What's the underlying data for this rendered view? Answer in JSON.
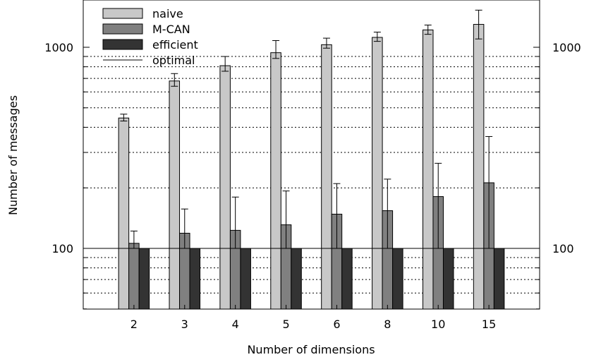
{
  "chart_data": {
    "type": "bar",
    "title": "",
    "xlabel": "Number of dimensions",
    "ylabel": "Number of messages",
    "yscale": "log",
    "ylim": [
      50,
      1800
    ],
    "yticks": [
      100,
      1000
    ],
    "ytick_labels": [
      "100",
      "1000"
    ],
    "right_axis_labels": true,
    "grid": "horizontal dotted at minor log ticks",
    "legend_position": "top-left",
    "categories": [
      "2",
      "3",
      "4",
      "5",
      "6",
      "8",
      "10",
      "15"
    ],
    "series": [
      {
        "name": "naive",
        "color": "#c8c8c8",
        "values": [
          445,
          680,
          810,
          940,
          1030,
          1120,
          1220,
          1300
        ],
        "error_low": [
          430,
          640,
          760,
          880,
          990,
          1070,
          1160,
          1100
        ],
        "error_high": [
          465,
          740,
          900,
          1080,
          1110,
          1190,
          1290,
          1530
        ]
      },
      {
        "name": "M-CAN",
        "color": "#808080",
        "values": [
          106,
          119,
          123,
          131,
          148,
          154,
          181,
          212
        ],
        "error_low": [
          100,
          100,
          100,
          100,
          100,
          100,
          100,
          100
        ],
        "error_high": [
          122,
          157,
          180,
          193,
          210,
          221,
          265,
          360
        ]
      },
      {
        "name": "efficient",
        "color": "#333333",
        "values": [
          100,
          100,
          100,
          100,
          100,
          100,
          100,
          100
        ]
      },
      {
        "name": "optimal",
        "kind": "line",
        "color": "#000000",
        "value": 100
      }
    ]
  }
}
